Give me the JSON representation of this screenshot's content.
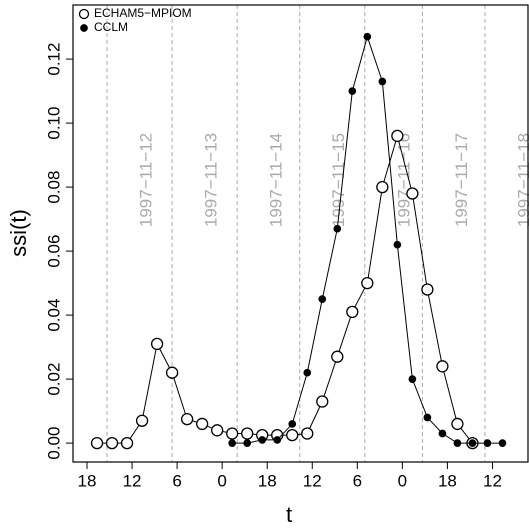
{
  "chart_data": {
    "type": "line",
    "x_label": "t",
    "y_label": "ssi(t)",
    "x": [
      4,
      10,
      16,
      22,
      28,
      34,
      40,
      46,
      52,
      58,
      64,
      70,
      76,
      82,
      88,
      94,
      100,
      106,
      112,
      118,
      124,
      130,
      136,
      142,
      148,
      154,
      160,
      166
    ],
    "series": [
      {
        "name": "ECHAM5−MPIOM",
        "color": "#000000",
        "marker": "open",
        "values": [
          0,
          0,
          0,
          0.007,
          0.031,
          0.022,
          0.0075,
          0.006,
          0.004,
          0.003,
          0.003,
          0.0025,
          0.0025,
          0.0025,
          0.003,
          0.013,
          0.027,
          0.041,
          0.05,
          0.08,
          0.096,
          0.078,
          0.048,
          0.024,
          0.006,
          0,
          null,
          null
        ]
      },
      {
        "name": "CCLM",
        "color": "#000000",
        "marker": "filled",
        "values": [
          null,
          null,
          null,
          null,
          null,
          null,
          null,
          null,
          null,
          0,
          0,
          0.001,
          0.001,
          0.006,
          0.022,
          0.045,
          0.067,
          0.11,
          0.127,
          0.113,
          0.062,
          0.02,
          0.008,
          0.003,
          0,
          0,
          0,
          0
        ]
      }
    ],
    "xlim": [
      -5.6,
      176.2
    ],
    "xticks": [
      {
        "value": 0,
        "label": "18"
      },
      {
        "value": 18,
        "label": "12"
      },
      {
        "value": 36,
        "label": "6"
      },
      {
        "value": 54,
        "label": "0"
      },
      {
        "value": 72,
        "label": "18"
      },
      {
        "value": 90,
        "label": "12"
      },
      {
        "value": 108,
        "label": "6"
      },
      {
        "value": 126,
        "label": "0"
      },
      {
        "value": 144,
        "label": "18"
      },
      {
        "value": 162,
        "label": "12"
      }
    ],
    "ylim": [
      -0.0059,
      0.1369
    ],
    "yticks": [
      {
        "value": 0,
        "label": "0.00"
      },
      {
        "value": 0.02,
        "label": "0.02"
      },
      {
        "value": 0.04,
        "label": "0.04"
      },
      {
        "value": 0.06,
        "label": "0.06"
      },
      {
        "value": 0.08,
        "label": "0.08"
      },
      {
        "value": 0.1,
        "label": "0.10"
      },
      {
        "value": 0.12,
        "label": "0.12"
      }
    ],
    "day_lines": [
      {
        "x": 8,
        "label": "1997−11−12"
      },
      {
        "x": 34,
        "label": "1997−11−13"
      },
      {
        "x": 60,
        "label": "1997−11−14"
      },
      {
        "x": 85,
        "label": "1997−11−15"
      },
      {
        "x": 111,
        "label": "1997−11−16"
      },
      {
        "x": 134,
        "label": "1997−11−17"
      },
      {
        "x": 159,
        "label": "1997−11−18"
      }
    ],
    "legend": "top-left"
  }
}
